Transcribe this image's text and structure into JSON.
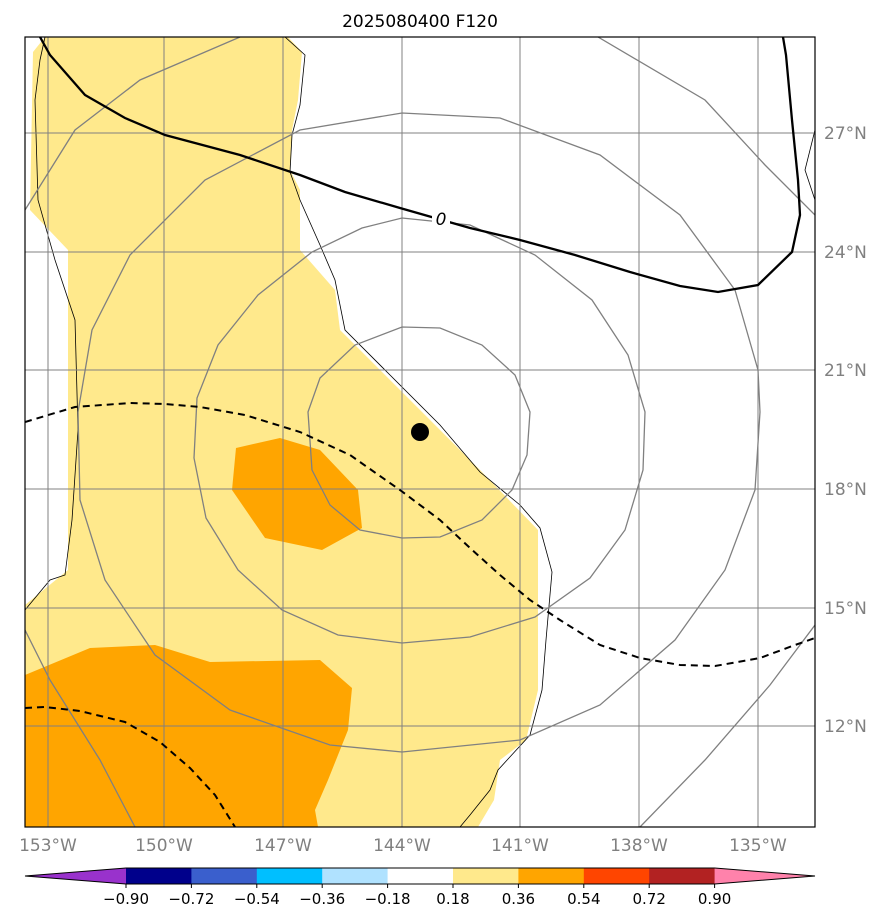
{
  "title": "2025080400 F120",
  "map": {
    "lon_ticks": [
      "153°W",
      "150°W",
      "147°W",
      "144°W",
      "141°W",
      "138°W",
      "135°W"
    ],
    "lat_ticks": [
      "27°N",
      "24°N",
      "21°N",
      "18°N",
      "15°N",
      "12°N"
    ],
    "contour_label": "0",
    "extent": {
      "lon": [
        -153.5,
        -133.5
      ],
      "lat": [
        9.6,
        29.6
      ]
    },
    "marker": {
      "lon": -143.4,
      "lat": 19.5
    }
  },
  "colorbar": {
    "ticks": [
      "−0.90",
      "−0.72",
      "−0.54",
      "−0.36",
      "−0.18",
      "0.18",
      "0.36",
      "0.54",
      "0.72",
      "0.90"
    ],
    "colors": [
      "#9932cc",
      "#00008b",
      "#3a5fcd",
      "#00bfff",
      "#b0e2ff",
      "#ffffff",
      "#ffe98c",
      "#ffa500",
      "#ff4500",
      "#b22222",
      "#ff82ab"
    ]
  }
}
